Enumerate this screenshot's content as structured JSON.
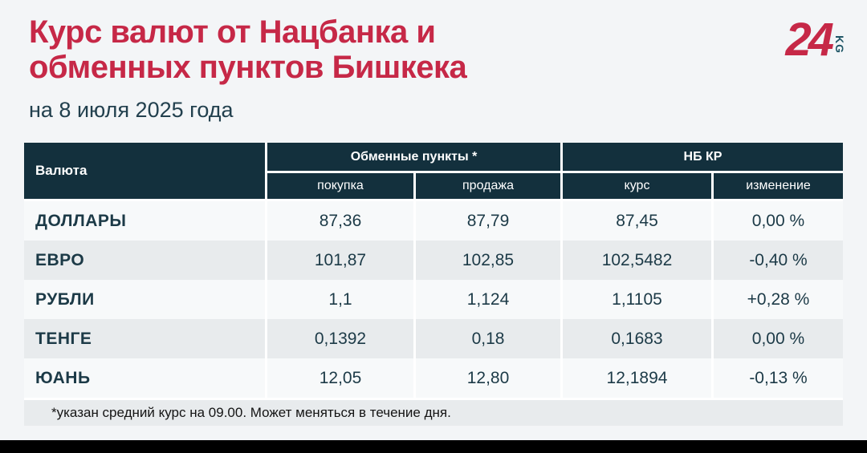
{
  "page": {
    "title_line1": "Курс валют от Нацбанка и",
    "title_line2": "обменных пунктов Бишкека",
    "subtitle": "на 8 июля 2025 года",
    "footnote": "*указан средний курс на 09.00. Может меняться в течение дня.",
    "colors": {
      "accent_red": "#c62847",
      "header_bg": "#13303d",
      "row_light": "#f7f9fa",
      "row_alt": "#e8ebed",
      "text_dark": "#1c3a47",
      "logo_kg_teal": "#1f5666"
    }
  },
  "logo": {
    "number": "24",
    "suffix": "KG"
  },
  "table": {
    "col_currency": "Валюта",
    "group_exchange": "Обменные пункты *",
    "group_nbkr": "НБ КР",
    "subcols": [
      "покупка",
      "продажа",
      "курс",
      "изменение"
    ],
    "rows": [
      {
        "currency": "ДОЛЛАРЫ",
        "buy": "87,36",
        "sell": "87,79",
        "rate": "87,45",
        "change": "0,00 %"
      },
      {
        "currency": "ЕВРО",
        "buy": "101,87",
        "sell": "102,85",
        "rate": "102,5482",
        "change": "-0,40 %"
      },
      {
        "currency": "РУБЛИ",
        "buy": "1,1",
        "sell": "1,124",
        "rate": "1,1105",
        "change": "+0,28 %"
      },
      {
        "currency": "ТЕНГЕ",
        "buy": "0,1392",
        "sell": "0,18",
        "rate": "0,1683",
        "change": "0,00 %"
      },
      {
        "currency": "ЮАНЬ",
        "buy": "12,05",
        "sell": "12,80",
        "rate": "12,1894",
        "change": "-0,13 %"
      }
    ]
  },
  "chart_data": {
    "type": "table",
    "title": "Курс валют от Нацбанка и обменных пунктов Бишкека",
    "subtitle": "на 8 июля 2025 года",
    "column_groups": [
      "Валюта",
      "Обменные пункты *",
      "НБ КР"
    ],
    "columns": [
      "Валюта",
      "покупка",
      "продажа",
      "курс",
      "изменение"
    ],
    "rows": [
      [
        "ДОЛЛАРЫ",
        "87,36",
        "87,79",
        "87,45",
        "0,00 %"
      ],
      [
        "ЕВРО",
        "101,87",
        "102,85",
        "102,5482",
        "-0,40 %"
      ],
      [
        "РУБЛИ",
        "1,1",
        "1,124",
        "1,1105",
        "+0,28 %"
      ],
      [
        "ТЕНГЕ",
        "0,1392",
        "0,18",
        "0,1683",
        "0,00 %"
      ],
      [
        "ЮАНЬ",
        "12,05",
        "12,80",
        "12,1894",
        "-0,13 %"
      ]
    ],
    "footnote": "*указан средний курс на 09.00. Может меняться в течение дня."
  }
}
